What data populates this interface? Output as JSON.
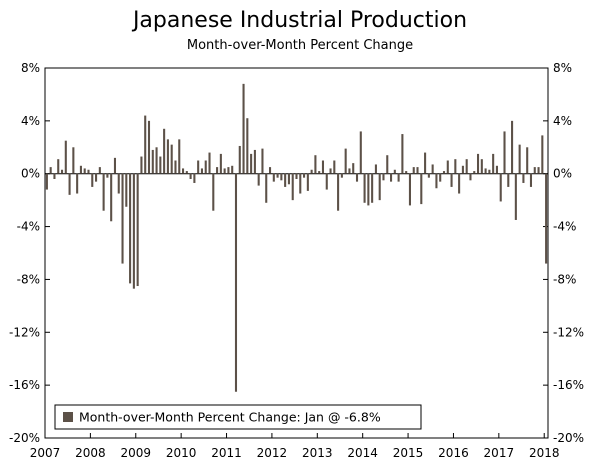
{
  "chart_data": {
    "type": "bar",
    "title": "Japanese Industrial Production",
    "subtitle": "Month-over-Month Percent Change",
    "xlabel": "",
    "ylabel": "",
    "ylim": [
      -20,
      8
    ],
    "y_ticks": [
      "8%",
      "4%",
      "0%",
      "-4%",
      "-8%",
      "-12%",
      "-16%",
      "-20%"
    ],
    "y_tick_values": [
      8,
      4,
      0,
      -4,
      -8,
      -12,
      -16,
      -20
    ],
    "x_ticks": [
      "2007",
      "2008",
      "2009",
      "2010",
      "2011",
      "2012",
      "2013",
      "2014",
      "2015",
      "2016",
      "2017",
      "2018"
    ],
    "start": "2007-01",
    "series": [
      {
        "name": "Month-over-Month Percent Change: Jan @ -6.8%",
        "color": "#5c5148",
        "values": [
          -1.2,
          0.5,
          -0.4,
          1.1,
          0.3,
          2.5,
          -1.6,
          2.0,
          -1.5,
          0.6,
          0.4,
          0.3,
          -1.0,
          -0.6,
          0.5,
          -2.8,
          -0.3,
          -3.6,
          1.2,
          -1.5,
          -6.8,
          -2.5,
          -8.3,
          -8.7,
          -8.5,
          1.3,
          4.4,
          4.0,
          1.8,
          2.0,
          1.3,
          3.4,
          2.6,
          2.2,
          1.0,
          2.6,
          0.4,
          0.2,
          -0.4,
          -0.7,
          1.0,
          0.4,
          1.0,
          1.6,
          -2.8,
          0.5,
          1.5,
          0.4,
          0.5,
          0.6,
          -16.5,
          2.1,
          6.8,
          4.2,
          1.5,
          1.8,
          -0.9,
          1.9,
          -2.2,
          0.5,
          -0.6,
          -0.3,
          -0.5,
          -1.0,
          -0.8,
          -2.0,
          -0.4,
          -1.5,
          -0.3,
          -1.3,
          0.3,
          1.4,
          0.2,
          1.0,
          -1.2,
          0.4,
          1.0,
          -2.8,
          -0.3,
          1.9,
          0.4,
          0.8,
          -0.6,
          3.2,
          -2.2,
          -2.4,
          -2.2,
          0.7,
          -2.0,
          -0.5,
          1.4,
          -0.6,
          0.3,
          -0.6,
          3.0,
          0.2,
          -2.4,
          0.5,
          0.5,
          -2.3,
          1.6,
          -0.3,
          0.7,
          -1.1,
          -0.6,
          0.2,
          1.0,
          -1.0,
          1.1,
          -1.5,
          0.6,
          1.1,
          -0.5,
          0.2,
          1.5,
          1.1,
          0.4,
          0.3,
          1.5,
          0.6,
          -2.1,
          3.2,
          -1.0,
          4.0,
          -3.5,
          2.2,
          -0.7,
          2.0,
          -1.0,
          0.5,
          0.5,
          2.9,
          -6.8
        ]
      }
    ],
    "legend": "Month-over-Month Percent Change: Jan @ -6.8%",
    "legend_position": "bottom-left"
  }
}
